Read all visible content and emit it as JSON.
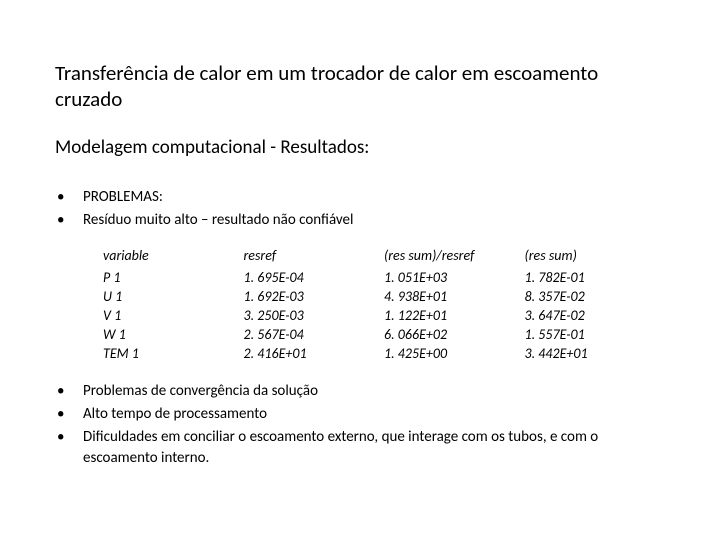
{
  "title": "Transferência de calor em um trocador de calor em escoamento cruzado",
  "subtitle": "Modelagem computacional - Resultados:",
  "bullets_top": [
    "PROBLEMAS:",
    "Resíduo muito alto – resultado não confiável"
  ],
  "table": {
    "columns": [
      "variable",
      "resref",
      "(res sum)/resref",
      "(res sum)"
    ],
    "rows": [
      [
        "P 1",
        "1. 695E-04",
        "1. 051E+03",
        "1. 782E-01"
      ],
      [
        "U 1",
        "1. 692E-03",
        "4. 938E+01",
        "8. 357E-02"
      ],
      [
        "V 1",
        "3. 250E-03",
        "1. 122E+01",
        "3. 647E-02"
      ],
      [
        "W 1",
        "2. 567E-04",
        "6. 066E+02",
        "1. 557E-01"
      ],
      [
        "TEM 1",
        "2. 416E+01",
        "1. 425E+00",
        "3. 442E+01"
      ]
    ]
  },
  "bullets_bottom": [
    "Problemas de convergência da solução",
    "Alto tempo de processamento",
    "Dificuldades em conciliar o escoamento externo, que interage com os tubos, e com o escoamento interno."
  ]
}
